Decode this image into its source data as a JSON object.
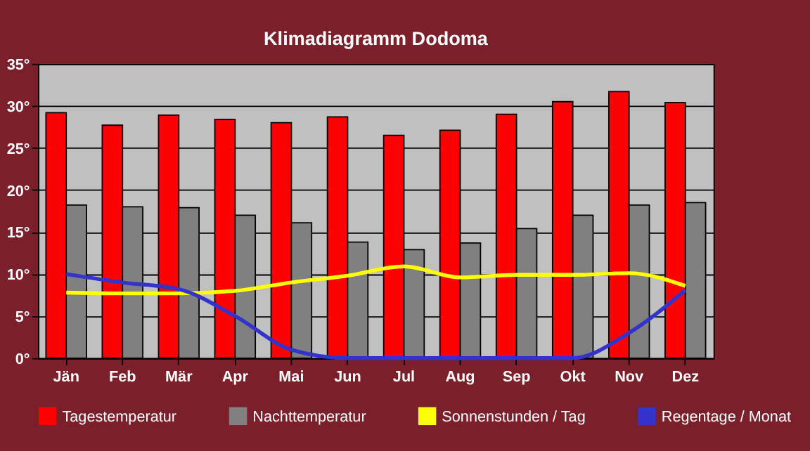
{
  "chart_data": {
    "type": "bar",
    "title": "Klimadiagramm Dodoma",
    "categories": [
      "Jän",
      "Feb",
      "Mär",
      "Apr",
      "Mai",
      "Jun",
      "Jul",
      "Aug",
      "Sep",
      "Okt",
      "Nov",
      "Dez"
    ],
    "series": [
      {
        "name": "Tagestemperatur",
        "color": "#ff0000",
        "values": [
          29.2,
          27.7,
          28.9,
          28.4,
          28.0,
          28.7,
          26.5,
          27.1,
          29.0,
          30.5,
          31.7,
          30.4
        ]
      },
      {
        "name": "Nachttemperatur",
        "color": "#808080",
        "values": [
          18.2,
          18.0,
          17.9,
          17.0,
          16.1,
          13.8,
          12.9,
          13.7,
          15.4,
          17.0,
          18.2,
          18.5
        ]
      },
      {
        "name": "Sonnenstunden / Tag",
        "type": "line",
        "color": "#ffff00",
        "values": [
          7.8,
          7.7,
          7.7,
          8.0,
          9.0,
          9.8,
          10.9,
          9.6,
          9.9,
          9.9,
          10.1,
          8.6
        ]
      },
      {
        "name": "Regentage / Monat",
        "type": "line",
        "color": "#3333cc",
        "values": [
          10.0,
          9.0,
          8.2,
          5.0,
          1.0,
          0,
          0,
          0,
          0,
          0,
          3.0,
          8.1
        ]
      }
    ],
    "ylim": [
      0,
      35
    ],
    "yticks": [
      {
        "value": 0,
        "label": "0°"
      },
      {
        "value": 5,
        "label": "5°"
      },
      {
        "value": 10,
        "label": "10°"
      },
      {
        "value": 15,
        "label": "15°"
      },
      {
        "value": 20,
        "label": "20°"
      },
      {
        "value": 25,
        "label": "25°"
      },
      {
        "value": 30,
        "label": "30°"
      },
      {
        "value": 35,
        "label": "35°"
      }
    ],
    "grid": "y",
    "legend": "bottom",
    "marker": "none",
    "line_style": "solid"
  }
}
